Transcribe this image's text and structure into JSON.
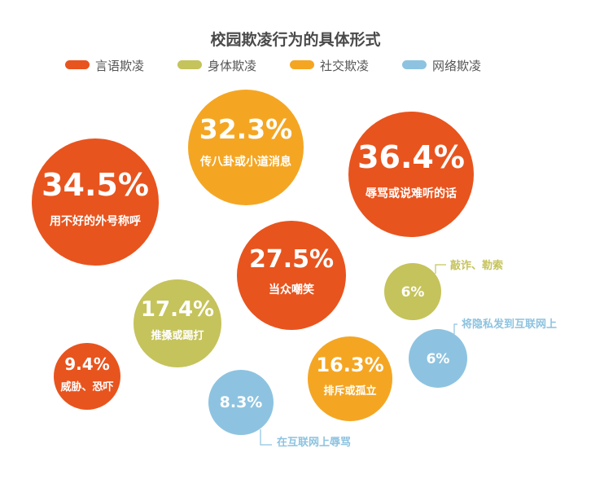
{
  "chart_data": {
    "type": "bubble",
    "title": "校园欺凌行为的具体形式",
    "legend": [
      {
        "name": "言语欺凌",
        "color": "#e8541e"
      },
      {
        "name": "身体欺凌",
        "color": "#c5c35b"
      },
      {
        "name": "社交欺凌",
        "color": "#f4a623"
      },
      {
        "name": "网络欺凌",
        "color": "#8dc3e0"
      }
    ],
    "points": [
      {
        "category": "言语欺凌",
        "value_label": "36.4%",
        "value": 36.4,
        "label": "辱骂或说难听的话"
      },
      {
        "category": "言语欺凌",
        "value_label": "34.5%",
        "value": 34.5,
        "label": "用不好的外号称呼"
      },
      {
        "category": "社交欺凌",
        "value_label": "32.3%",
        "value": 32.3,
        "label": "传八卦或小道消息"
      },
      {
        "category": "言语欺凌",
        "value_label": "27.5%",
        "value": 27.5,
        "label": "当众嘲笑"
      },
      {
        "category": "身体欺凌",
        "value_label": "17.4%",
        "value": 17.4,
        "label": "推搡或踢打"
      },
      {
        "category": "社交欺凌",
        "value_label": "16.3%",
        "value": 16.3,
        "label": "排斥或孤立"
      },
      {
        "category": "言语欺凌",
        "value_label": "9.4%",
        "value": 9.4,
        "label": "威胁、恐吓"
      },
      {
        "category": "网络欺凌",
        "value_label": "8.3%",
        "value": 8.3,
        "label": "在互联网上辱骂"
      },
      {
        "category": "身体欺凌",
        "value_label": "6%",
        "value": 6,
        "label": "敲诈、勒索"
      },
      {
        "category": "网络欺凌",
        "value_label": "6%",
        "value": 6,
        "label": "将隐私发到互联网上"
      }
    ]
  }
}
